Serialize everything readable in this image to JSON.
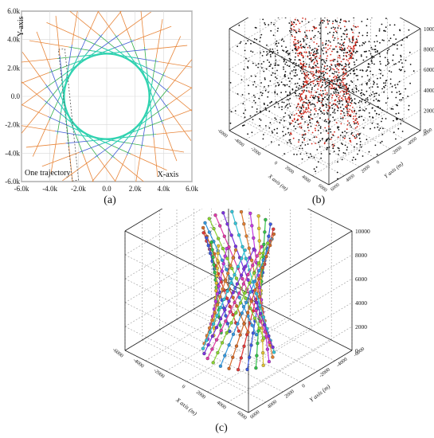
{
  "panels": [
    {
      "id": "a",
      "caption": "(a)",
      "type": "line",
      "x_ticks": [
        "-6.0k",
        "-4.0k",
        "-2.0k",
        "0.0",
        "2.0k",
        "4.0k",
        "6.0k"
      ],
      "y_ticks": [
        "6.0k",
        "4.0k",
        "2.0k",
        "0.0",
        "-2.0k",
        "-4.0k",
        "-6.0k"
      ],
      "x_axis_label": "X-axis",
      "y_axis_label": "Y-axis",
      "annotation": "One trajectory"
    },
    {
      "id": "b",
      "caption": "(b)",
      "type": "scatter",
      "z_label": "Time (ms)",
      "x_label": "X axis (m)",
      "y_label": "Y axis (m)",
      "z_ticks": [
        "10000",
        "8000",
        "6000",
        "4000",
        "2000",
        "0"
      ],
      "x_ticks": [
        "-6000",
        "-4000",
        "-2000",
        "0",
        "2000",
        "4000",
        "6000"
      ],
      "y_ticks": [
        "6000",
        "4000",
        "2000",
        "0",
        "-2000",
        "-4000",
        "-6000"
      ]
    },
    {
      "id": "c",
      "caption": "(c)",
      "type": "line",
      "z_label": "Time (ms)",
      "x_label": "X axis (m)",
      "y_label": "Y axis (m)",
      "z_ticks": [
        "10000",
        "8000",
        "6000",
        "4000",
        "2000",
        "0"
      ],
      "x_ticks": [
        "-6000",
        "-4000",
        "-2000",
        "0",
        "2000",
        "4000",
        "6000"
      ],
      "y_ticks": [
        "6000",
        "4000",
        "2000",
        "0",
        "-2000",
        "-4000",
        "-6000"
      ]
    }
  ],
  "chart_data": [
    {
      "type": "line",
      "title": "",
      "xlabel": "X-axis",
      "ylabel": "Y-axis",
      "xlim": [
        -6000,
        6000
      ],
      "ylim": [
        -6000,
        6000
      ],
      "description_series": "24 straight trajectories tangent to a circle of radius ~3000 around the origin",
      "circle_radius": 3000,
      "line_count": 24
    },
    {
      "type": "scatter",
      "xlabel": "X axis (m)",
      "ylabel": "Y axis (m)",
      "zlabel": "Time (ms)",
      "xlim": [
        -6000,
        6000
      ],
      "ylim": [
        -6000,
        6000
      ],
      "zlim": [
        0,
        10000
      ],
      "series": [
        {
          "name": "",
          "color": "#000000"
        },
        {
          "name": "",
          "color": "#d42a1c"
        }
      ]
    },
    {
      "type": "line",
      "xlabel": "X axis (m)",
      "ylabel": "Y axis (m)",
      "zlabel": "Time (ms)",
      "xlim": [
        -6000,
        6000
      ],
      "ylim": [
        -6000,
        6000
      ],
      "zlim": [
        0,
        10000
      ],
      "line_count": 24
    }
  ],
  "colors": {
    "circle": "#2fd3b0",
    "orange": "#e8863a",
    "blue": "#3f5bd6",
    "green": "#35b14a",
    "black_points": "#111111",
    "red_points": "#d42a1c",
    "traj_palette": [
      "#e03a3a",
      "#3d5be0",
      "#33c24a",
      "#e0c233",
      "#c23ae0",
      "#e07f33",
      "#33c4d8",
      "#7a33e0",
      "#e03aa7",
      "#8bd433",
      "#3398e0",
      "#d46b2a"
    ]
  }
}
